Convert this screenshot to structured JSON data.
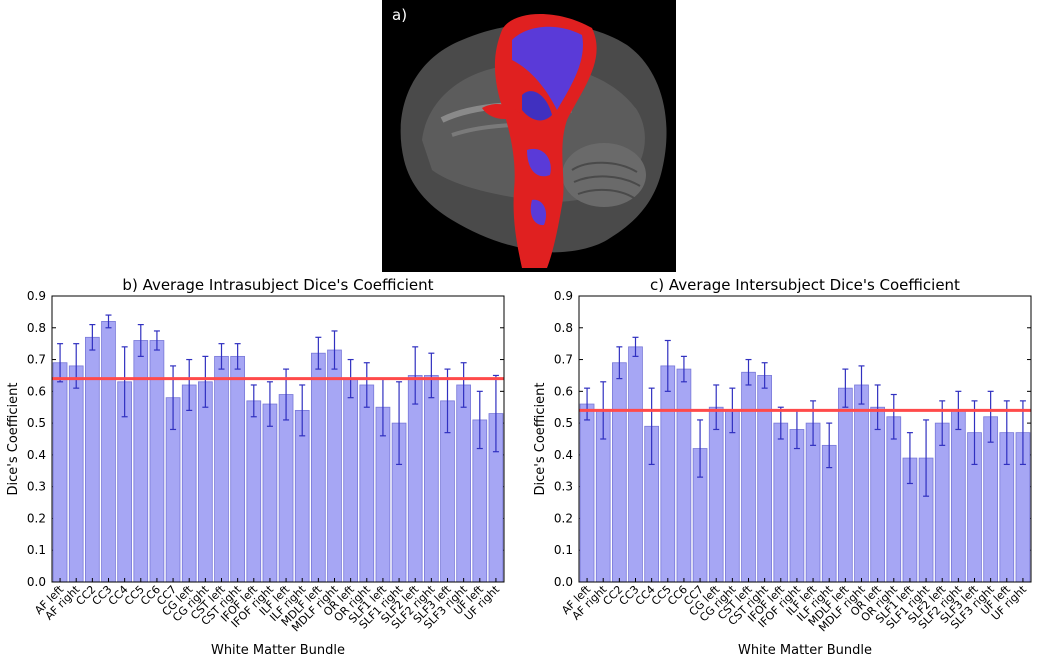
{
  "panel_a": {
    "label": "a)",
    "image_description_icon": "brain-tractography-icon"
  },
  "chart_data": [
    {
      "type": "bar",
      "title": "b) Average Intrasubject Dice's Coefficient",
      "xlabel": "White Matter Bundle",
      "ylabel": "Dice's Coefficient",
      "ylim": [
        0.0,
        0.9
      ],
      "yticks": [
        "0.0",
        "0.1",
        "0.2",
        "0.3",
        "0.4",
        "0.5",
        "0.6",
        "0.7",
        "0.8",
        "0.9"
      ],
      "reference_line": 0.64,
      "categories": [
        "AF left",
        "AF right",
        "CC2",
        "CC3",
        "CC4",
        "CC5",
        "CC6",
        "CC7",
        "CG left",
        "CG right",
        "CST left",
        "CST right",
        "IFOF left",
        "IFOF right",
        "ILF left",
        "ILF right",
        "MDLF left",
        "MDLF right",
        "OR left",
        "OR right",
        "SLF1 left",
        "SLF1 right",
        "SLF2 left",
        "SLF2 right",
        "SLF3 left",
        "SLF3 right",
        "UF left",
        "UF right"
      ],
      "values": [
        0.69,
        0.68,
        0.77,
        0.82,
        0.63,
        0.76,
        0.76,
        0.58,
        0.62,
        0.63,
        0.71,
        0.71,
        0.57,
        0.56,
        0.59,
        0.54,
        0.72,
        0.73,
        0.64,
        0.62,
        0.55,
        0.5,
        0.65,
        0.65,
        0.57,
        0.62,
        0.51,
        0.53
      ],
      "errors": [
        0.06,
        0.07,
        0.04,
        0.02,
        0.11,
        0.05,
        0.03,
        0.1,
        0.08,
        0.08,
        0.04,
        0.04,
        0.05,
        0.07,
        0.08,
        0.08,
        0.05,
        0.06,
        0.06,
        0.07,
        0.09,
        0.13,
        0.09,
        0.07,
        0.1,
        0.07,
        0.09,
        0.12
      ],
      "colors": {
        "bar": "#a6a6f4",
        "bar_edge": "#7878d8",
        "error": "#3030c0",
        "reference": "#ff4a4a"
      }
    },
    {
      "type": "bar",
      "title": "c) Average Intersubject Dice's Coefficient",
      "xlabel": "White Matter Bundle",
      "ylabel": "Dice's Coefficient",
      "ylim": [
        0.0,
        0.9
      ],
      "yticks": [
        "0.0",
        "0.1",
        "0.2",
        "0.3",
        "0.4",
        "0.5",
        "0.6",
        "0.7",
        "0.8",
        "0.9"
      ],
      "reference_line": 0.54,
      "categories": [
        "AF left",
        "AF right",
        "CC2",
        "CC3",
        "CC4",
        "CC5",
        "CC6",
        "CC7",
        "CG left",
        "CG right",
        "CST left",
        "CST right",
        "IFOF left",
        "IFOF right",
        "ILF left",
        "ILF right",
        "MDLF left",
        "MDLF right",
        "OR left",
        "OR right",
        "SLF1 left",
        "SLF1 right",
        "SLF2 left",
        "SLF2 right",
        "SLF3 left",
        "SLF3 right",
        "UF left",
        "UF right"
      ],
      "values": [
        0.56,
        0.54,
        0.69,
        0.74,
        0.49,
        0.68,
        0.67,
        0.42,
        0.55,
        0.54,
        0.66,
        0.65,
        0.5,
        0.48,
        0.5,
        0.43,
        0.61,
        0.62,
        0.55,
        0.52,
        0.39,
        0.39,
        0.5,
        0.54,
        0.47,
        0.52,
        0.47,
        0.47
      ],
      "errors": [
        0.05,
        0.09,
        0.05,
        0.03,
        0.12,
        0.08,
        0.04,
        0.09,
        0.07,
        0.07,
        0.04,
        0.04,
        0.05,
        0.06,
        0.07,
        0.07,
        0.06,
        0.06,
        0.07,
        0.07,
        0.08,
        0.12,
        0.07,
        0.06,
        0.1,
        0.08,
        0.1,
        0.1
      ],
      "colors": {
        "bar": "#a6a6f4",
        "bar_edge": "#7878d8",
        "error": "#3030c0",
        "reference": "#ff4a4a"
      }
    }
  ]
}
